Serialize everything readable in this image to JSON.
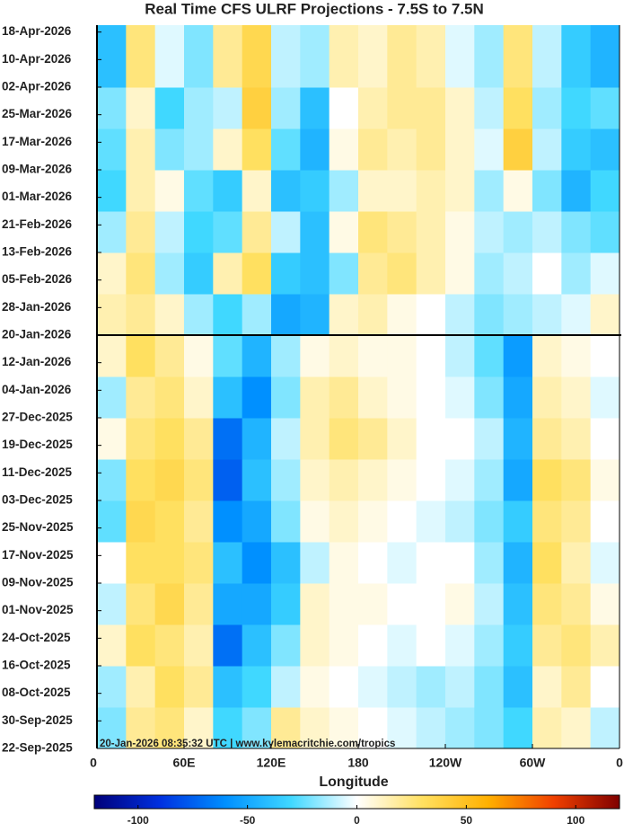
{
  "chart_data": {
    "type": "heatmap",
    "title": "Real Time CFS ULRF Projections - 7.5S to 7.5N",
    "xlabel": "Longitude",
    "annotation": "20-Jan-2026 08:35:32 UTC | www.kylemacritchie.com/tropics",
    "xlim": [
      0,
      360
    ],
    "xticks": [
      0,
      {
        "value": 60,
        "label": "60E"
      },
      {
        "value": 120,
        "label": "120E"
      },
      180,
      {
        "value": 240,
        "label": "120W"
      },
      {
        "value": 300,
        "label": "60W"
      },
      {
        "value": 360,
        "label": "0"
      }
    ],
    "ylim": [
      "2025-09-22",
      "2026-04-20"
    ],
    "yticks": [
      {
        "value": "2025-09-22",
        "label": "22-Sep-2025"
      },
      {
        "value": "2025-09-30",
        "label": "30-Sep-2025"
      },
      {
        "value": "2025-10-08",
        "label": "08-Oct-2025"
      },
      {
        "value": "2025-10-16",
        "label": "16-Oct-2025"
      },
      {
        "value": "2025-10-24",
        "label": "24-Oct-2025"
      },
      {
        "value": "2025-11-01",
        "label": "01-Nov-2025"
      },
      {
        "value": "2025-11-09",
        "label": "09-Nov-2025"
      },
      {
        "value": "2025-11-17",
        "label": "17-Nov-2025"
      },
      {
        "value": "2025-11-25",
        "label": "25-Nov-2025"
      },
      {
        "value": "2025-12-03",
        "label": "03-Dec-2025"
      },
      {
        "value": "2025-12-11",
        "label": "11-Dec-2025"
      },
      {
        "value": "2025-12-19",
        "label": "19-Dec-2025"
      },
      {
        "value": "2025-12-27",
        "label": "27-Dec-2025"
      },
      {
        "value": "2026-01-04",
        "label": "04-Jan-2026"
      },
      {
        "value": "2026-01-12",
        "label": "12-Jan-2026"
      },
      {
        "value": "2026-01-20",
        "label": "20-Jan-2026"
      },
      {
        "value": "2026-01-28",
        "label": "28-Jan-2026"
      },
      {
        "value": "2026-02-05",
        "label": "05-Feb-2026"
      },
      {
        "value": "2026-02-13",
        "label": "13-Feb-2026"
      },
      {
        "value": "2026-02-21",
        "label": "21-Feb-2026"
      },
      {
        "value": "2026-03-01",
        "label": "01-Mar-2026"
      },
      {
        "value": "2026-03-09",
        "label": "09-Mar-2026"
      },
      {
        "value": "2026-03-17",
        "label": "17-Mar-2026"
      },
      {
        "value": "2026-03-25",
        "label": "25-Mar-2026"
      },
      {
        "value": "2026-04-02",
        "label": "02-Apr-2026"
      },
      {
        "value": "2026-04-10",
        "label": "10-Apr-2026"
      },
      {
        "value": "2026-04-18",
        "label": "18-Apr-2026"
      }
    ],
    "hline": "2026-01-20",
    "x": [
      10,
      30,
      50,
      70,
      90,
      110,
      130,
      150,
      170,
      190,
      210,
      230,
      250,
      270,
      290,
      310,
      330,
      350
    ],
    "y": [
      "2025-09-28",
      "2025-10-10",
      "2025-10-22",
      "2025-11-03",
      "2025-11-15",
      "2025-11-27",
      "2025-12-09",
      "2025-12-21",
      "2026-01-02",
      "2026-01-14",
      "2026-01-26",
      "2026-02-07",
      "2026-02-19",
      "2026-03-03",
      "2026-03-15",
      "2026-03-27",
      "2026-04-08"
    ],
    "z": [
      [
        -20,
        20,
        25,
        10,
        -30,
        -20,
        20,
        10,
        5,
        0,
        -5,
        -10,
        -15,
        -20,
        -30,
        15,
        10,
        -10
      ],
      [
        -15,
        15,
        30,
        20,
        -40,
        -30,
        -10,
        5,
        0,
        -5,
        -10,
        -15,
        -10,
        -20,
        -40,
        10,
        20,
        0
      ],
      [
        10,
        30,
        25,
        15,
        -70,
        -40,
        -20,
        10,
        5,
        0,
        -5,
        0,
        -5,
        -15,
        -35,
        20,
        25,
        15
      ],
      [
        -10,
        25,
        35,
        20,
        -50,
        -50,
        -35,
        10,
        5,
        5,
        0,
        0,
        5,
        -10,
        -40,
        25,
        20,
        5
      ],
      [
        0,
        30,
        30,
        25,
        -40,
        -60,
        -40,
        -10,
        5,
        0,
        -5,
        0,
        0,
        -15,
        -45,
        30,
        15,
        -5
      ],
      [
        -25,
        35,
        30,
        20,
        -60,
        -50,
        -20,
        5,
        10,
        5,
        0,
        -5,
        -10,
        -20,
        -35,
        25,
        20,
        0
      ],
      [
        -20,
        30,
        35,
        25,
        -75,
        -40,
        -15,
        10,
        15,
        10,
        5,
        0,
        -5,
        -15,
        -50,
        30,
        25,
        5
      ],
      [
        5,
        25,
        30,
        20,
        -70,
        -45,
        -10,
        15,
        25,
        20,
        10,
        0,
        0,
        -10,
        -45,
        20,
        15,
        0
      ],
      [
        -15,
        20,
        25,
        10,
        -40,
        -60,
        -20,
        15,
        20,
        10,
        5,
        0,
        -5,
        -20,
        -50,
        15,
        10,
        -5
      ],
      [
        10,
        30,
        20,
        5,
        -25,
        -45,
        -15,
        5,
        10,
        5,
        5,
        0,
        -10,
        -25,
        -55,
        10,
        5,
        0
      ],
      [
        15,
        20,
        10,
        -15,
        -30,
        -15,
        -50,
        -45,
        10,
        15,
        5,
        0,
        -10,
        -20,
        -15,
        -10,
        -5,
        10
      ],
      [
        10,
        25,
        -15,
        -35,
        15,
        30,
        -35,
        -40,
        -20,
        20,
        25,
        15,
        5,
        -15,
        -10,
        0,
        -15,
        -5
      ],
      [
        -15,
        20,
        -10,
        -30,
        -25,
        20,
        -10,
        -40,
        5,
        25,
        20,
        15,
        5,
        -10,
        -15,
        -10,
        -20,
        -25
      ],
      [
        -30,
        15,
        5,
        -25,
        -35,
        10,
        -40,
        -35,
        -15,
        10,
        10,
        15,
        10,
        -15,
        5,
        -20,
        -45,
        -30
      ],
      [
        -25,
        15,
        -20,
        -15,
        10,
        30,
        -25,
        -45,
        5,
        20,
        15,
        20,
        10,
        -5,
        40,
        -10,
        -35,
        -40
      ],
      [
        -20,
        10,
        -30,
        -15,
        -10,
        40,
        -15,
        -40,
        0,
        15,
        20,
        20,
        10,
        -10,
        30,
        -15,
        -30,
        -25
      ],
      [
        -40,
        25,
        -5,
        -20,
        20,
        35,
        -10,
        -15,
        15,
        10,
        20,
        15,
        -5,
        -15,
        25,
        -10,
        -35,
        -45
      ]
    ],
    "clim": [
      -120,
      120
    ],
    "cticks": [
      -100,
      -50,
      0,
      50,
      100
    ],
    "colormap": [
      [
        -120,
        "#00007a"
      ],
      [
        -90,
        "#0030e0"
      ],
      [
        -60,
        "#0090ff"
      ],
      [
        -30,
        "#40d8ff"
      ],
      [
        0,
        "#ffffff"
      ],
      [
        30,
        "#ffe060"
      ],
      [
        60,
        "#ffb000"
      ],
      [
        90,
        "#f04000"
      ],
      [
        120,
        "#800000"
      ]
    ]
  }
}
